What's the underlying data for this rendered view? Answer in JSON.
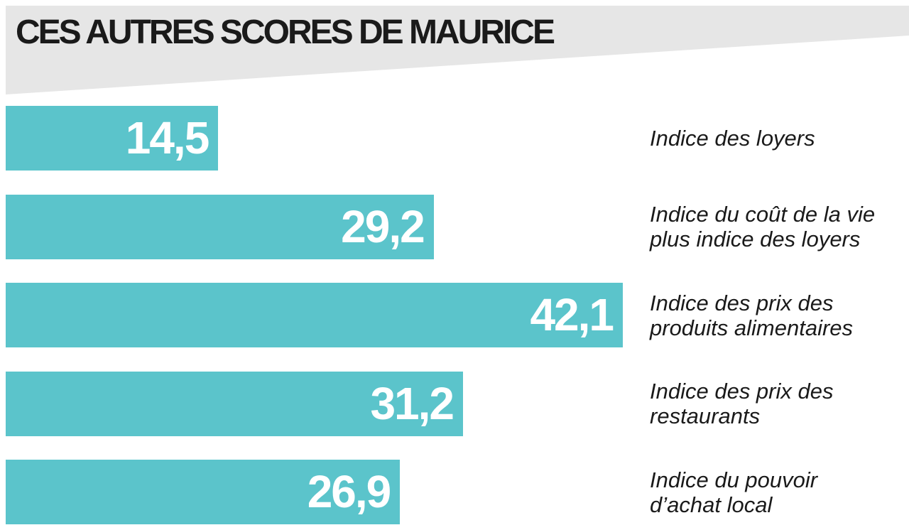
{
  "chart_data": {
    "type": "bar",
    "orientation": "horizontal",
    "title": "CES AUTRES SCORES DE MAURICE",
    "categories": [
      "Indice des loyers",
      "Indice du coût de la vie\nplus indice des loyers",
      "Indice des prix des\nproduits alimentaires",
      "Indice des prix des\nrestaurants",
      "Indice du pouvoir\nd’achat local"
    ],
    "values": [
      14.5,
      29.2,
      42.1,
      31.2,
      26.9
    ],
    "value_labels": [
      "14,5",
      "29,2",
      "42,1",
      "31,2",
      "26,9"
    ],
    "color": "#5bc4cb"
  }
}
